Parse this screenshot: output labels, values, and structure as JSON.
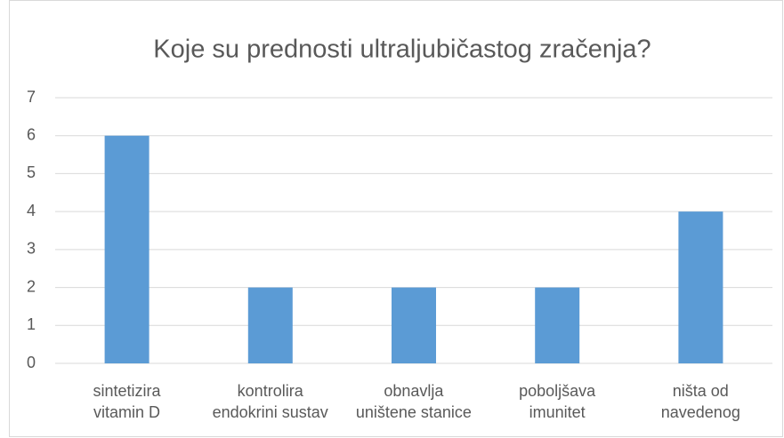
{
  "chart_data": {
    "type": "bar",
    "title": "Koje su prednosti ultraljubičastog zračenja?",
    "categories": [
      "sintetizira\nvitamin D",
      "kontrolira\nendokrini sustav",
      "obnavlja\nuništene stanice",
      "poboljšava\nimunitet",
      "ništa od\nnavedenog"
    ],
    "values": [
      6,
      2,
      2,
      2,
      4
    ],
    "color": "#5b9bd5",
    "ylim": [
      0,
      7
    ],
    "yticks": [
      0,
      1,
      2,
      3,
      4,
      5,
      6,
      7
    ],
    "grid": true
  }
}
